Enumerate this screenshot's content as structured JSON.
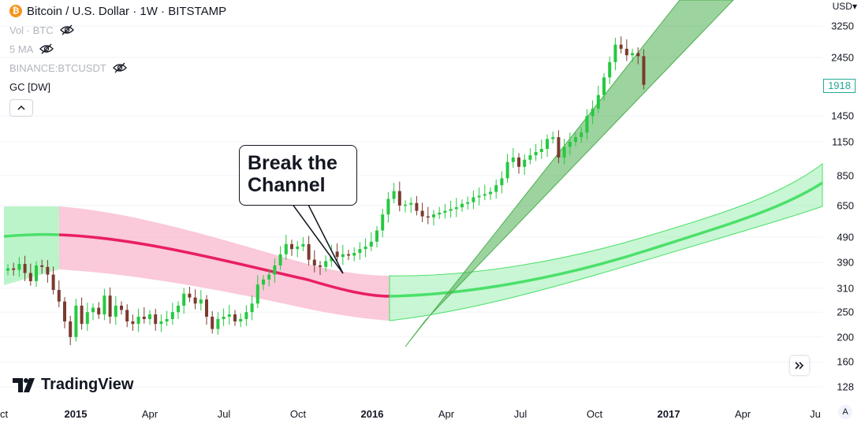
{
  "legend": {
    "title": "Bitcoin / U.S. Dollar · 1W · BITSTAMP",
    "coin_icon": "bitcoin-icon",
    "coin_symbol": "₿",
    "indicators": [
      {
        "label": "Vol · BTC",
        "hidden": true
      },
      {
        "label": "5 MA",
        "hidden": true
      },
      {
        "label": "BINANCE:BTCUSDT",
        "hidden": true
      },
      {
        "label": "GC [DW]",
        "hidden": false
      }
    ]
  },
  "y_axis": {
    "currency": "USD",
    "ticks": [
      "3250",
      "2450",
      "1450",
      "1150",
      "850",
      "650",
      "490",
      "390",
      "310",
      "250",
      "200",
      "160",
      "128"
    ],
    "current_price": "1918"
  },
  "x_axis": {
    "ticks": [
      {
        "label": "ct",
        "bold": false
      },
      {
        "label": "2015",
        "bold": true
      },
      {
        "label": "Apr",
        "bold": false
      },
      {
        "label": "Jul",
        "bold": false
      },
      {
        "label": "Oct",
        "bold": false
      },
      {
        "label": "2016",
        "bold": true
      },
      {
        "label": "Apr",
        "bold": false
      },
      {
        "label": "Jul",
        "bold": false
      },
      {
        "label": "Oct",
        "bold": false
      },
      {
        "label": "2017",
        "bold": true
      },
      {
        "label": "Apr",
        "bold": false
      },
      {
        "label": "Ju",
        "bold": false
      }
    ],
    "auto_label": "A"
  },
  "annotation": {
    "line1": "Break the",
    "line2": "Channel"
  },
  "brand": {
    "name": "TradingView"
  },
  "colors": {
    "up": "#26c940",
    "down": "#7b3a2e",
    "bear_band": "#f8b7cd",
    "bear_line": "#e91e63",
    "bull_band": "#a5f0b8",
    "bull_line": "#4be06a",
    "breakout_band": "#4caf50"
  },
  "chart_data": {
    "type": "candlestick",
    "title": "Bitcoin / U.S. Dollar · 1W · BITSTAMP",
    "x_range": [
      "2014-10",
      "2017-06"
    ],
    "y_scale": "log",
    "y_ticks": [
      128,
      160,
      200,
      250,
      310,
      390,
      490,
      650,
      850,
      1150,
      1450,
      2450,
      3250
    ],
    "current_price": 1918,
    "annotation": "Break the Channel",
    "candles_close": [
      370,
      365,
      385,
      355,
      330,
      380,
      375,
      350,
      305,
      275,
      230,
      200,
      265,
      225,
      250,
      260,
      245,
      290,
      240,
      265,
      255,
      230,
      225,
      240,
      235,
      245,
      225,
      230,
      235,
      250,
      265,
      295,
      285,
      270,
      280,
      240,
      215,
      235,
      240,
      245,
      230,
      235,
      250,
      270,
      320,
      335,
      350,
      380,
      420,
      460,
      440,
      450,
      460,
      400,
      380,
      375,
      395,
      430,
      410,
      420,
      415,
      425,
      440,
      450,
      470,
      520,
      600,
      690,
      740,
      650,
      655,
      665,
      620,
      590,
      585,
      600,
      610,
      620,
      630,
      640,
      660,
      670,
      700,
      710,
      720,
      735,
      780,
      830,
      960,
      1000,
      920,
      980,
      1020,
      1050,
      1080,
      1180,
      1200,
      1000,
      1100,
      1150,
      1200,
      1250,
      1450,
      1550,
      1750,
      2050,
      2350,
      2750,
      2650,
      2500,
      2550,
      2480,
      1918
    ],
    "bear_channel": {
      "x_range": [
        "2014-12",
        "2016-02"
      ],
      "center": [
        495,
        275
      ]
    },
    "bull_channel": {
      "x_range": [
        "2016-02",
        "2017-06"
      ],
      "center": [
        275,
        750
      ]
    },
    "breakout_channel": {
      "x_range": [
        "2016-03",
        "2017-02"
      ],
      "from": 190,
      "to": 3600
    }
  }
}
